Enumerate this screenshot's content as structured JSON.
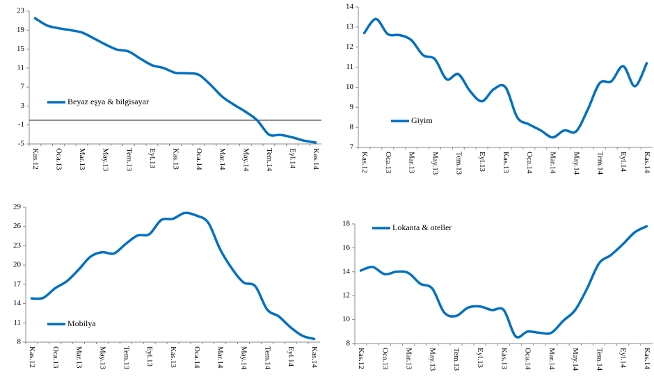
{
  "chart_data": [
    {
      "type": "line",
      "categories": [
        "Kas.12",
        null,
        "Oca.13",
        null,
        "Mar.13",
        null,
        "May.13",
        null,
        "Tem.13",
        null,
        "Eyl.13",
        null,
        "Kas.13",
        null,
        "Oca.14",
        null,
        "Mar.14",
        null,
        "May.14",
        null,
        "Tem.14",
        null,
        "Eyl.14",
        null,
        "Kas.14"
      ],
      "series": [
        {
          "name": "Beyaz eşya & bilgisayar",
          "color": "#0070c0",
          "values": [
            21.5,
            20,
            19.4,
            19,
            18.5,
            17.3,
            16,
            14.9,
            14.5,
            13,
            11.6,
            11,
            10,
            9.9,
            9.6,
            7.5,
            5,
            3.3,
            1.8,
            0,
            -3,
            -3.1,
            -3.6,
            -4.3,
            -4.7
          ]
        }
      ],
      "ylim": [
        -5,
        23
      ],
      "yticks": [
        -5,
        -1,
        3,
        7,
        11,
        15,
        19,
        23
      ]
    },
    {
      "type": "line",
      "categories": [
        "Kas.12",
        null,
        "Oca.13",
        null,
        "Mar.13",
        null,
        "May.13",
        null,
        "Tem.13",
        null,
        "Eyl.13",
        null,
        "Kas.13",
        null,
        "Oca.14",
        null,
        "Mar.14",
        null,
        "May.14",
        null,
        "Tem.14",
        null,
        "Eyl.14",
        null,
        "Kas.14"
      ],
      "series": [
        {
          "name": "Giyim",
          "color": "#0070c0",
          "values": [
            12.7,
            13.4,
            12.65,
            12.6,
            12.35,
            11.6,
            11.4,
            10.4,
            10.65,
            9.8,
            9.3,
            9.9,
            10,
            8.5,
            8.15,
            7.85,
            7.5,
            7.85,
            7.8,
            8.9,
            10.2,
            10.3,
            11.05,
            10.05,
            11.2
          ]
        }
      ],
      "ylim": [
        7,
        14
      ],
      "yticks": [
        7,
        8,
        9,
        10,
        11,
        12,
        13,
        14
      ]
    },
    {
      "type": "line",
      "categories": [
        "Kas.12",
        null,
        "Oca.13",
        null,
        "Mar.13",
        null,
        "May.13",
        null,
        "Tem.13",
        null,
        "Eyl.13",
        null,
        "Kas.13",
        null,
        "Oca.14",
        null,
        "Mar.14",
        null,
        "May.14",
        null,
        "Tem.14",
        null,
        "Eyl.14",
        null,
        "Kas.14"
      ],
      "series": [
        {
          "name": "Mobilya",
          "color": "#0070c0",
          "values": [
            14.8,
            14.9,
            16.4,
            17.5,
            19.3,
            21.3,
            22,
            21.8,
            23.3,
            24.6,
            24.8,
            27,
            27.2,
            28.1,
            27.7,
            26.6,
            22.5,
            19.5,
            17.3,
            16.7,
            13.1,
            12,
            10.3,
            9,
            8.5
          ]
        }
      ],
      "ylim": [
        8,
        29
      ],
      "yticks": [
        8,
        11,
        14,
        17,
        20,
        23,
        26,
        29
      ]
    },
    {
      "type": "line",
      "categories": [
        "Kas.12",
        null,
        "Oca.13",
        null,
        "Mar.13",
        null,
        "May.13",
        null,
        "Tem.13",
        null,
        "Eyl.13",
        null,
        "Kas.13",
        null,
        "Oca.14",
        null,
        "Mar.14",
        null,
        "May.14",
        null,
        "Tem.14",
        null,
        "Eyl.14",
        null,
        "Kas.14"
      ],
      "series": [
        {
          "name": "Lokanta & oteller",
          "color": "#0070c0",
          "values": [
            14.1,
            14.4,
            13.8,
            14,
            13.9,
            13,
            12.6,
            10.6,
            10.3,
            11,
            11.1,
            10.8,
            10.8,
            8.6,
            9,
            8.9,
            8.9,
            9.9,
            10.8,
            12.6,
            14.7,
            15.4,
            16.3,
            17.3,
            17.8
          ]
        }
      ],
      "ylim": [
        8,
        18
      ],
      "yticks": [
        8,
        10,
        12,
        14,
        16,
        18
      ]
    }
  ]
}
